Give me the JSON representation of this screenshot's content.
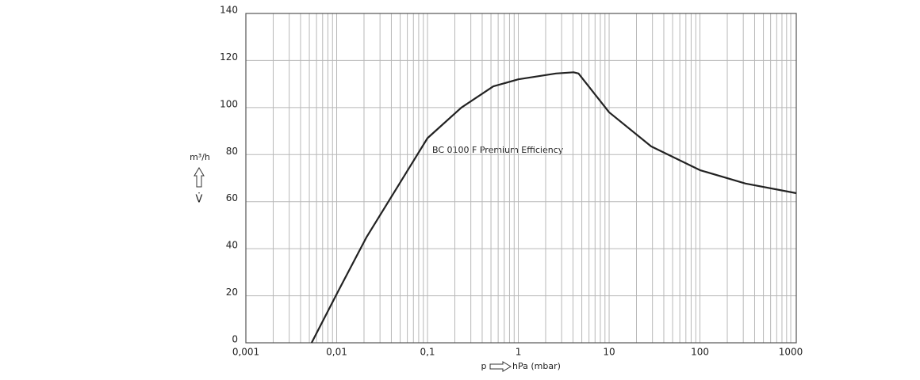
{
  "chart_data": {
    "type": "line",
    "x_scale": "log",
    "annotation": "BC 0100 F Premium Efficiency",
    "y_label_unit": "m³/h",
    "y_label_symbol": "V̇",
    "x_label_symbol": "p",
    "x_label_unit": "hPa (mbar)",
    "xlim": [
      0.001,
      1150
    ],
    "ylim": [
      0,
      140
    ],
    "xticks": [
      {
        "value": 0.001,
        "label": "0,001"
      },
      {
        "value": 0.01,
        "label": "0,01"
      },
      {
        "value": 0.1,
        "label": "0,1"
      },
      1,
      10,
      100,
      1000
    ],
    "x_minor_grid": [
      0.002,
      0.003,
      0.004,
      0.005,
      0.006,
      0.007,
      0.008,
      0.009,
      0.02,
      0.03,
      0.04,
      0.05,
      0.06,
      0.07,
      0.08,
      0.09,
      0.2,
      0.3,
      0.4,
      0.5,
      0.6,
      0.7,
      0.8,
      0.9,
      2,
      3,
      4,
      5,
      6,
      7,
      8,
      9,
      20,
      30,
      40,
      50,
      60,
      70,
      80,
      90,
      200,
      300,
      400,
      500,
      600,
      700,
      800,
      900
    ],
    "yticks": [
      0,
      20,
      40,
      60,
      80,
      100,
      120,
      140
    ],
    "grid": true,
    "series": [
      {
        "name": "BC 0100 F Premium Efficiency",
        "color": "#222222",
        "x": [
          0.0053,
          0.0104,
          0.0214,
          0.048,
          0.1,
          0.236,
          0.53,
          1,
          2.6,
          4.06,
          4.6,
          10,
          29,
          100,
          317,
          1150
        ],
        "values": [
          0,
          22,
          45,
          67,
          87,
          100,
          109,
          112,
          114.5,
          115,
          114.5,
          98,
          83.5,
          73.4,
          67.7,
          63.6
        ]
      }
    ]
  }
}
